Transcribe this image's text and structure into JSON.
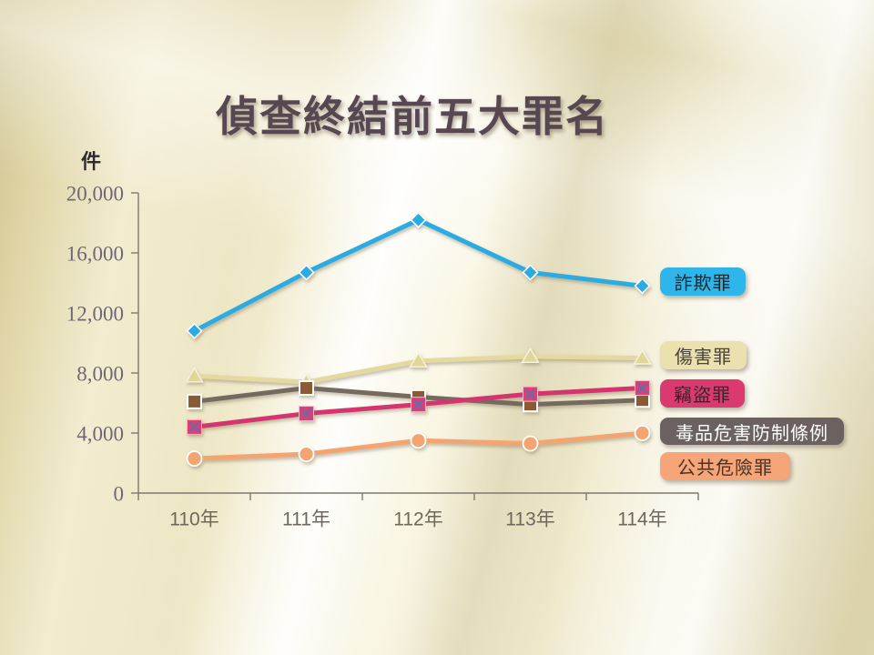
{
  "title": "偵查終結前五大罪名",
  "chart_data": {
    "type": "line",
    "title": "偵查終結前五大罪名",
    "unit_label": "件",
    "xlabel": "",
    "ylabel": "件",
    "categories": [
      "110年",
      "111年",
      "112年",
      "113年",
      "114年"
    ],
    "series": [
      {
        "key": "fraud",
        "name": "詐欺罪",
        "marker": "diamond",
        "color": "#2AACE3",
        "marker_color": "#2AACE3",
        "label_bg": "#2EB5EA",
        "label_text": "#22282c",
        "values": [
          10800,
          14700,
          18200,
          14700,
          13800
        ]
      },
      {
        "key": "injury",
        "name": "傷害罪",
        "marker": "triangle",
        "color": "#E4DA9F",
        "marker_color": "#E0D69A",
        "label_bg": "#EBE1AE",
        "label_text": "#48423a",
        "values": [
          7800,
          7400,
          8800,
          9100,
          9000
        ]
      },
      {
        "key": "theft",
        "name": "竊盜罪",
        "marker": "x-square",
        "color": "#D5366E",
        "marker_color": "#E73A70",
        "x_color": "#6A6AA8",
        "label_bg": "#DA3A70",
        "label_text": "#33262c",
        "values": [
          4400,
          5300,
          5900,
          6600,
          7000
        ]
      },
      {
        "key": "drugs",
        "name": "毒品危害防制條例",
        "marker": "square",
        "color": "#746A61",
        "marker_color": "#8A5A35",
        "label_bg": "#6B6161",
        "label_text": "#FFFFFF",
        "values": [
          6100,
          7000,
          6400,
          5900,
          6200
        ]
      },
      {
        "key": "public-danger",
        "name": "公共危險罪",
        "marker": "circle",
        "color": "#F4A471",
        "marker_color": "#F4A471",
        "label_bg": "#F5A577",
        "label_text": "#44342b",
        "values": [
          2300,
          2600,
          3500,
          3300,
          4000
        ]
      }
    ],
    "ylim": [
      0,
      20000
    ],
    "ytick_labels": [
      "0",
      "4,000",
      "8,000",
      "12,000",
      "16,000",
      "20,000"
    ],
    "grid": false,
    "legend_position": "right"
  },
  "colors": {
    "axis": "#7E786E",
    "y_tick_text": "#6F6775",
    "x_tick_text": "#6E685C",
    "title_text": "#574751"
  }
}
